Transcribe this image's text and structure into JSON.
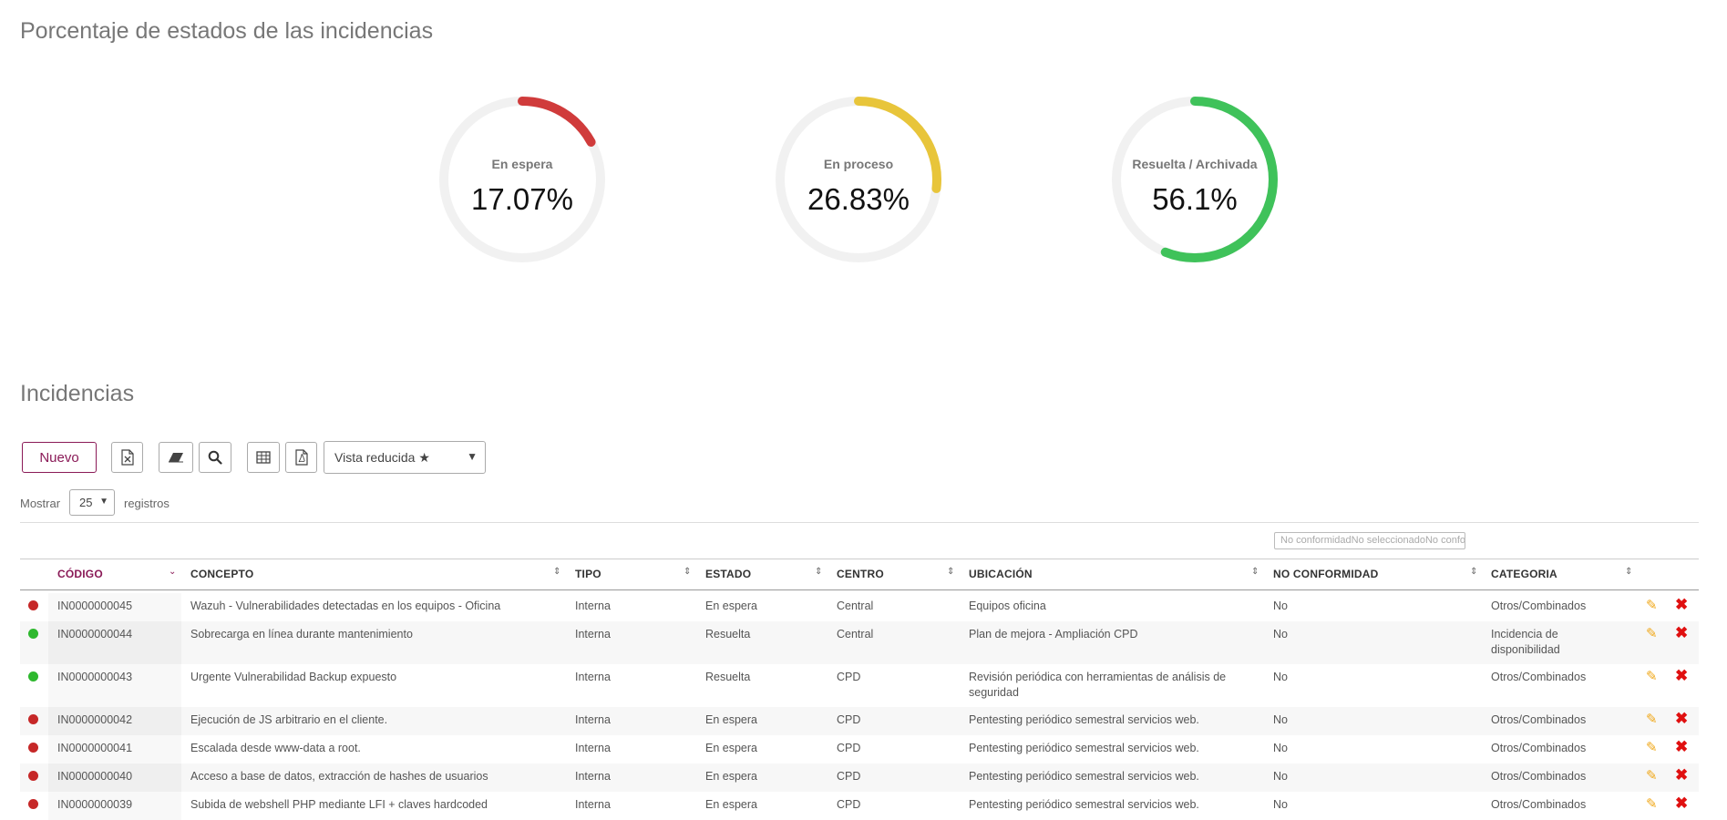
{
  "section_stats": {
    "title": "Porcentaje de estados de las incidencias"
  },
  "gauges": [
    {
      "label": "En espera",
      "value_text": "17.07%",
      "fraction": 0.1707,
      "color": "#d03b3b"
    },
    {
      "label": "En proceso",
      "value_text": "26.83%",
      "fraction": 0.2683,
      "color": "#e8c53a"
    },
    {
      "label": "Resuelta / Archivada",
      "value_text": "56.1%",
      "fraction": 0.561,
      "color": "#3fc25a"
    }
  ],
  "section_list": {
    "title": "Incidencias"
  },
  "toolbar": {
    "new_label": "Nuevo",
    "excel_icon": "file-excel-icon",
    "eraser_icon": "eraser-icon",
    "search_icon": "search-icon",
    "table_icon": "table-icon",
    "pdf_icon": "file-pdf-icon",
    "view_select": "Vista reducida ★"
  },
  "length": {
    "prefix": "Mostrar",
    "value": "25",
    "suffix": "registros"
  },
  "filters": {
    "no_conformidad": "No conformidadNo seleccionadoNo conformidad"
  },
  "table": {
    "headers": {
      "codigo": "CÓDIGO",
      "concepto": "CONCEPTO",
      "tipo": "TIPO",
      "estado": "ESTADO",
      "centro": "CENTRO",
      "ubicacion": "UBICACIÓN",
      "no_conformidad": "NO CONFORMIDAD",
      "categoria": "CATEGORIA"
    },
    "rows": [
      {
        "status_color": "#c62828",
        "codigo": "IN0000000045",
        "concepto": "Wazuh - Vulnerabilidades detectadas en los equipos - Oficina",
        "tipo": "Interna",
        "estado": "En espera",
        "centro": "Central",
        "ubicacion": "Equipos oficina",
        "no_conformidad": "No",
        "categoria": "Otros/Combinados"
      },
      {
        "status_color": "#2eb82e",
        "codigo": "IN0000000044",
        "concepto": "Sobrecarga en línea durante mantenimiento",
        "tipo": "Interna",
        "estado": "Resuelta",
        "centro": "Central",
        "ubicacion": "Plan de mejora - Ampliación CPD",
        "no_conformidad": "No",
        "categoria": "Incidencia de disponibilidad"
      },
      {
        "status_color": "#2eb82e",
        "codigo": "IN0000000043",
        "concepto": "Urgente Vulnerabilidad Backup expuesto",
        "tipo": "Interna",
        "estado": "Resuelta",
        "centro": "CPD",
        "ubicacion": "Revisión periódica con herramientas de análisis de seguridad",
        "no_conformidad": "No",
        "categoria": "Otros/Combinados"
      },
      {
        "status_color": "#c62828",
        "codigo": "IN0000000042",
        "concepto": "Ejecución de JS arbitrario en el cliente.",
        "tipo": "Interna",
        "estado": "En espera",
        "centro": "CPD",
        "ubicacion": "Pentesting periódico semestral servicios web.",
        "no_conformidad": "No",
        "categoria": "Otros/Combinados"
      },
      {
        "status_color": "#c62828",
        "codigo": "IN0000000041",
        "concepto": "Escalada desde www-data a root.",
        "tipo": "Interna",
        "estado": "En espera",
        "centro": "CPD",
        "ubicacion": "Pentesting periódico semestral servicios web.",
        "no_conformidad": "No",
        "categoria": "Otros/Combinados"
      },
      {
        "status_color": "#c62828",
        "codigo": "IN0000000040",
        "concepto": "Acceso a base de datos, extracción de hashes de usuarios",
        "tipo": "Interna",
        "estado": "En espera",
        "centro": "CPD",
        "ubicacion": "Pentesting periódico semestral servicios web.",
        "no_conformidad": "No",
        "categoria": "Otros/Combinados"
      },
      {
        "status_color": "#c62828",
        "codigo": "IN0000000039",
        "concepto": "Subida de webshell PHP mediante LFI + claves hardcoded",
        "tipo": "Interna",
        "estado": "En espera",
        "centro": "CPD",
        "ubicacion": "Pentesting periódico semestral servicios web.",
        "no_conformidad": "No",
        "categoria": "Otros/Combinados"
      }
    ]
  }
}
